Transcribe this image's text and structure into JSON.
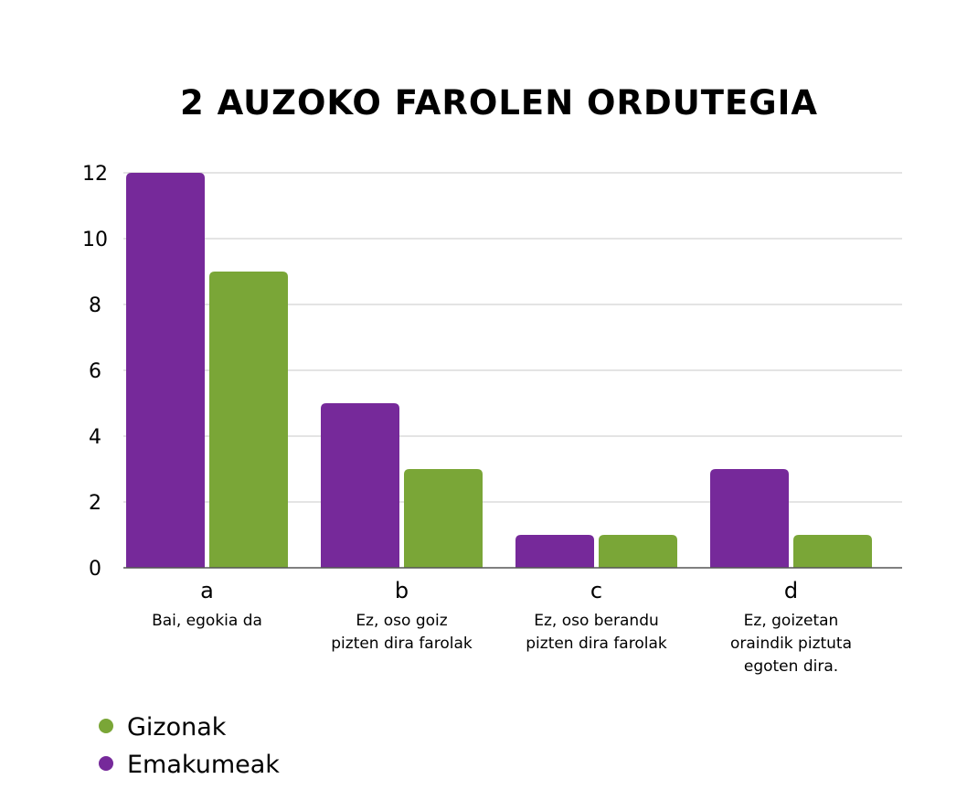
{
  "chart_data": {
    "type": "bar",
    "title": "2 AUZOKO FAROLEN ORDUTEGIA",
    "categories": [
      "a",
      "b",
      "c",
      "d"
    ],
    "category_descriptions": [
      [
        "Bai, egokia da"
      ],
      [
        "Ez, oso goiz",
        "pizten dira farolak"
      ],
      [
        "Ez, oso berandu",
        "pizten dira farolak"
      ],
      [
        "Ez, goizetan",
        "oraindik piztuta",
        "egoten dira."
      ]
    ],
    "series": [
      {
        "name": "Emakumeak",
        "values": [
          12,
          5,
          1,
          3
        ],
        "color": "#76299a"
      },
      {
        "name": "Gizonak",
        "values": [
          9,
          3,
          1,
          1
        ],
        "color": "#7aa637"
      }
    ],
    "yticks": [
      0,
      2,
      4,
      6,
      8,
      10,
      12
    ],
    "ylim": [
      0,
      12
    ],
    "grid": true,
    "legend": {
      "placement": "bottom-left",
      "items": [
        {
          "label": "Gizonak",
          "color": "#7aa637"
        },
        {
          "label": "Emakumeak",
          "color": "#76299a"
        }
      ]
    }
  }
}
